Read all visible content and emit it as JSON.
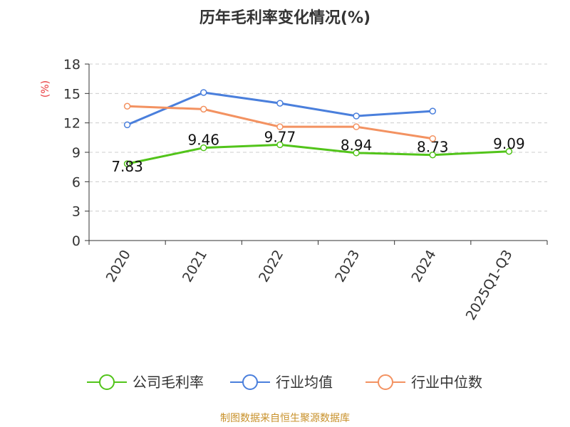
{
  "chart_data": {
    "type": "line",
    "title": "历年毛利率变化情况(%)",
    "ylabel": "(%)",
    "xlabel": "",
    "ylim": [
      0,
      18
    ],
    "yticks": [
      0,
      3,
      6,
      9,
      12,
      15,
      18
    ],
    "categories": [
      "2020",
      "2021",
      "2022",
      "2023",
      "2024",
      "2025Q1-Q3"
    ],
    "grid": true,
    "legend_position": "bottom",
    "series": [
      {
        "name": "公司毛利率",
        "color": "#52c41a",
        "values": [
          7.83,
          9.46,
          9.77,
          8.94,
          8.73,
          9.09
        ],
        "show_labels": true
      },
      {
        "name": "行业均值",
        "color": "#4a7fdc",
        "values": [
          11.8,
          15.1,
          14.0,
          12.7,
          13.2,
          null
        ],
        "show_labels": false
      },
      {
        "name": "行业中位数",
        "color": "#f39261",
        "values": [
          13.7,
          13.4,
          11.6,
          11.6,
          10.4,
          null
        ],
        "show_labels": false
      }
    ]
  },
  "unit_color": "#e8363a",
  "source": {
    "text": "制图数据来自恒生聚源数据库",
    "color": "#c8912b"
  }
}
